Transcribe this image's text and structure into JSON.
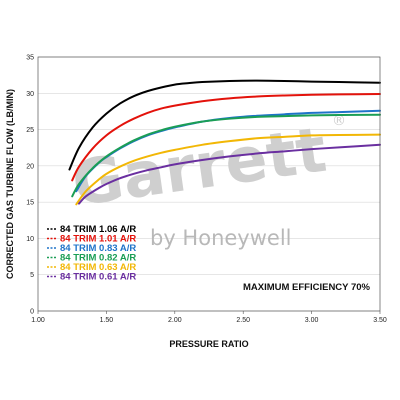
{
  "chart_data": {
    "type": "line",
    "xlabel": "PRESSURE RATIO",
    "ylabel": "CORRECTED GAS TURBINE FLOW (LB/MIN)",
    "xlim": [
      1.0,
      3.5
    ],
    "ylim": [
      0,
      35
    ],
    "x_ticks": [
      "1.00",
      "1.50",
      "2.00",
      "2.50",
      "3.00",
      "3.50"
    ],
    "y_ticks": [
      "0",
      "5",
      "10",
      "15",
      "20",
      "25",
      "30",
      "35"
    ],
    "grid": "horizontal",
    "legend_placement": "bottom-left",
    "annotation": "MAXIMUM EFFICIENCY 70%",
    "watermark": {
      "brand": "Garrett",
      "registered": "®",
      "tagline": "by Honeywell"
    },
    "series": [
      {
        "name": "84 TRIM 1.06 A/R",
        "color": "#000000",
        "x": [
          1.23,
          1.3,
          1.4,
          1.5,
          1.6,
          1.7,
          1.8,
          1.9,
          2.0,
          2.1,
          2.2,
          2.4,
          2.6,
          2.8,
          3.0,
          3.2,
          3.5
        ],
        "y": [
          19.5,
          22.5,
          25.3,
          27.2,
          28.6,
          29.6,
          30.3,
          30.8,
          31.2,
          31.4,
          31.55,
          31.7,
          31.75,
          31.7,
          31.6,
          31.55,
          31.45
        ]
      },
      {
        "name": "84 TRIM 1.01 A/R",
        "color": "#e3120b",
        "x": [
          1.25,
          1.3,
          1.4,
          1.5,
          1.6,
          1.7,
          1.8,
          1.9,
          2.0,
          2.2,
          2.4,
          2.6,
          2.8,
          3.0,
          3.2,
          3.5
        ],
        "y": [
          18.0,
          19.9,
          22.4,
          24.2,
          25.5,
          26.5,
          27.3,
          27.9,
          28.3,
          28.9,
          29.3,
          29.55,
          29.7,
          29.8,
          29.85,
          29.9
        ]
      },
      {
        "name": "84 TRIM 0.83 A/R",
        "color": "#1e73c9",
        "x": [
          1.28,
          1.35,
          1.45,
          1.5,
          1.6,
          1.7,
          1.8,
          1.9,
          2.0,
          2.2,
          2.4,
          2.6,
          2.8,
          3.0,
          3.2,
          3.5
        ],
        "y": [
          16.5,
          18.6,
          20.5,
          21.2,
          22.4,
          23.4,
          24.2,
          24.8,
          25.3,
          26.1,
          26.6,
          26.9,
          27.1,
          27.3,
          27.4,
          27.6
        ]
      },
      {
        "name": "84 TRIM 0.82 A/R",
        "color": "#1b9e55",
        "x": [
          1.25,
          1.3,
          1.4,
          1.5,
          1.6,
          1.7,
          1.8,
          1.9,
          2.0,
          2.2,
          2.4,
          2.6,
          2.8,
          3.0,
          3.2,
          3.5
        ],
        "y": [
          15.8,
          17.5,
          19.7,
          21.3,
          22.5,
          23.5,
          24.3,
          24.9,
          25.4,
          26.1,
          26.5,
          26.75,
          26.85,
          26.95,
          27.0,
          27.05
        ]
      },
      {
        "name": "84 TRIM 0.63 A/R",
        "color": "#f2b705",
        "x": [
          1.28,
          1.35,
          1.45,
          1.5,
          1.6,
          1.7,
          1.8,
          1.9,
          2.0,
          2.2,
          2.4,
          2.6,
          2.8,
          3.0,
          3.2,
          3.5
        ],
        "y": [
          14.7,
          16.5,
          18.2,
          18.9,
          19.9,
          20.7,
          21.3,
          21.8,
          22.2,
          22.9,
          23.4,
          23.8,
          24.0,
          24.2,
          24.25,
          24.3
        ]
      },
      {
        "name": "84 TRIM 0.61 A/R",
        "color": "#6a2fa0",
        "x": [
          1.3,
          1.35,
          1.45,
          1.5,
          1.6,
          1.7,
          1.8,
          1.9,
          2.0,
          2.2,
          2.4,
          2.6,
          2.8,
          3.0,
          3.2,
          3.5
        ],
        "y": [
          14.8,
          15.8,
          17.0,
          17.5,
          18.3,
          18.9,
          19.4,
          19.8,
          20.2,
          20.8,
          21.3,
          21.7,
          22.0,
          22.3,
          22.55,
          22.9
        ]
      }
    ]
  }
}
